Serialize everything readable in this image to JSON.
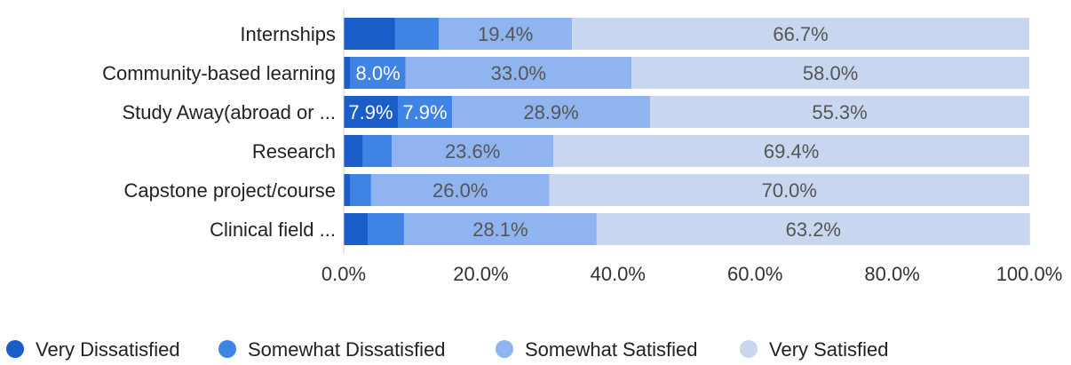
{
  "chart_data": {
    "type": "bar",
    "orientation": "horizontal",
    "stacked": true,
    "categories": [
      "Internships",
      "Community-based learning",
      "Study Away(abroad or ...",
      "Research",
      "Capstone project/course",
      "Clinical field ..."
    ],
    "series": [
      {
        "name": "Very Dissatisfied",
        "color": "#1a5dc8",
        "values": [
          7.5,
          1.0,
          7.9,
          2.8,
          1.0,
          3.5
        ]
      },
      {
        "name": "Somewhat Dissatisfied",
        "color": "#3f84e5",
        "values": [
          6.4,
          8.0,
          7.9,
          4.2,
          3.0,
          5.3
        ]
      },
      {
        "name": "Somewhat Satisfied",
        "color": "#8fb4ef",
        "values": [
          19.4,
          33.0,
          28.9,
          23.6,
          26.0,
          28.1
        ]
      },
      {
        "name": "Very Satisfied",
        "color": "#c8d7ef",
        "values": [
          66.7,
          58.0,
          55.3,
          69.4,
          70.0,
          63.2
        ]
      }
    ],
    "data_labels": [
      [
        null,
        null,
        "19.4%",
        "66.7%"
      ],
      [
        null,
        "8.0%",
        "33.0%",
        "58.0%"
      ],
      [
        "7.9%",
        "7.9%",
        "28.9%",
        "55.3%"
      ],
      [
        null,
        null,
        "23.6%",
        "69.4%"
      ],
      [
        null,
        null,
        "26.0%",
        "70.0%"
      ],
      [
        null,
        null,
        "28.1%",
        "63.2%"
      ]
    ],
    "x_ticks": [
      "0.0%",
      "20.0%",
      "40.0%",
      "60.0%",
      "80.0%",
      "100.0%"
    ],
    "xlim": [
      0,
      100
    ],
    "title": "",
    "xlabel": "",
    "ylabel": "",
    "grid": false,
    "legend_position": "bottom"
  }
}
